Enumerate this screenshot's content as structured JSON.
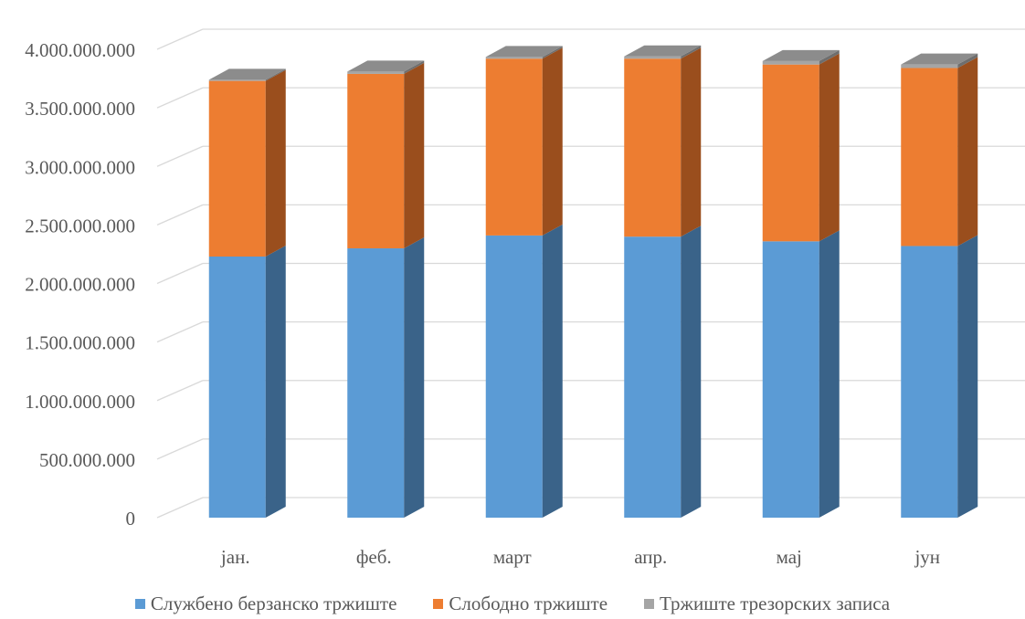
{
  "chart_data": {
    "type": "bar",
    "stacked": true,
    "three_d": true,
    "categories": [
      "јан.",
      "феб.",
      "март",
      "апр.",
      "мај",
      "јун"
    ],
    "series": [
      {
        "name": "Службено берзанско тржиште",
        "color": "#5B9BD5",
        "side_color": "#3A6389",
        "values": [
          2230000000,
          2300000000,
          2410000000,
          2400000000,
          2360000000,
          2320000000
        ]
      },
      {
        "name": "Слободно тржиште",
        "color": "#ED7D31",
        "side_color": "#9A4E1D",
        "values": [
          1500000000,
          1490000000,
          1510000000,
          1520000000,
          1510000000,
          1520000000
        ]
      },
      {
        "name": "Тржиште трезорских записа",
        "color": "#A5A5A5",
        "side_color": "#6E6E6E",
        "values": [
          10000000,
          20000000,
          15000000,
          20000000,
          30000000,
          30000000
        ]
      }
    ],
    "ylim": [
      0,
      4000000000
    ],
    "yticks": [
      "0",
      "500.000.000",
      "1.000.000.000",
      "1.500.000.000",
      "2.000.000.000",
      "2.500.000.000",
      "3.000.000.000",
      "3.500.000.000",
      "4.000.000.000"
    ],
    "ytick_values": [
      0,
      500000000,
      1000000000,
      1500000000,
      2000000000,
      2500000000,
      3000000000,
      3500000000,
      4000000000
    ],
    "grid": true,
    "legend_position": "bottom"
  }
}
